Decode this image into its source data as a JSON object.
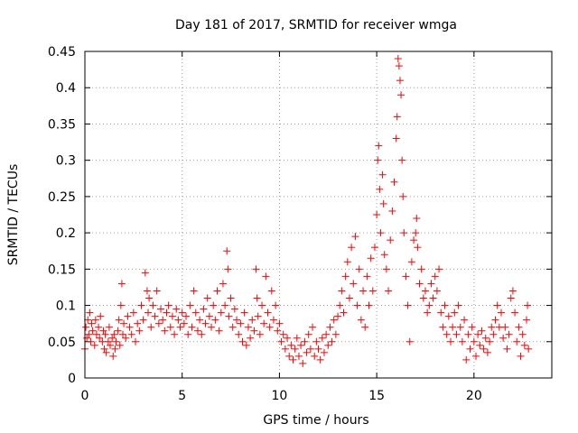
{
  "chart_data": {
    "type": "scatter",
    "title": "Day 181 of 2017, SRMTID for receiver wmga",
    "xlabel": "GPS time / hours",
    "ylabel": "SRMTID / TECUs",
    "xlim": [
      0,
      24
    ],
    "ylim": [
      0,
      0.45
    ],
    "xticks": [
      0,
      5,
      10,
      15,
      20
    ],
    "yticks": [
      0,
      0.05,
      0.1,
      0.15,
      0.2,
      0.25,
      0.3,
      0.35,
      0.4,
      0.45
    ],
    "xtick_labels": [
      "0",
      "5",
      "10",
      "15",
      "20"
    ],
    "ytick_labels": [
      "0",
      "0.05",
      "0.1",
      "0.15",
      "0.2",
      "0.25",
      "0.3",
      "0.35",
      "0.4",
      "0.45"
    ],
    "grid": true,
    "marker": "+",
    "color": "#ff0000",
    "series": [
      {
        "name": "wmga",
        "points": [
          [
            0.0,
            0.04
          ],
          [
            0.05,
            0.07
          ],
          [
            0.1,
            0.055
          ],
          [
            0.15,
            0.08
          ],
          [
            0.2,
            0.06
          ],
          [
            0.25,
            0.09
          ],
          [
            0.3,
            0.05
          ],
          [
            0.35,
            0.075
          ],
          [
            0.4,
            0.065
          ],
          [
            0.5,
            0.045
          ],
          [
            0.55,
            0.08
          ],
          [
            0.6,
            0.06
          ],
          [
            0.7,
            0.07
          ],
          [
            0.75,
            0.055
          ],
          [
            0.8,
            0.085
          ],
          [
            0.9,
            0.05
          ],
          [
            0.95,
            0.065
          ],
          [
            1.0,
            0.04
          ],
          [
            1.05,
            0.06
          ],
          [
            1.1,
            0.035
          ],
          [
            1.2,
            0.05
          ],
          [
            1.25,
            0.07
          ],
          [
            1.3,
            0.045
          ],
          [
            1.4,
            0.055
          ],
          [
            1.45,
            0.03
          ],
          [
            1.5,
            0.06
          ],
          [
            1.55,
            0.04
          ],
          [
            1.6,
            0.05
          ],
          [
            1.7,
            0.065
          ],
          [
            1.75,
            0.08
          ],
          [
            1.8,
            0.045
          ],
          [
            1.85,
            0.1
          ],
          [
            1.9,
            0.13
          ],
          [
            1.95,
            0.06
          ],
          [
            2.0,
            0.075
          ],
          [
            2.1,
            0.055
          ],
          [
            2.2,
            0.085
          ],
          [
            2.3,
            0.07
          ],
          [
            2.4,
            0.06
          ],
          [
            2.5,
            0.09
          ],
          [
            2.6,
            0.05
          ],
          [
            2.7,
            0.075
          ],
          [
            2.8,
            0.065
          ],
          [
            2.9,
            0.1
          ],
          [
            3.0,
            0.08
          ],
          [
            3.1,
            0.145
          ],
          [
            3.2,
            0.12
          ],
          [
            3.25,
            0.09
          ],
          [
            3.3,
            0.11
          ],
          [
            3.4,
            0.07
          ],
          [
            3.5,
            0.1
          ],
          [
            3.6,
            0.085
          ],
          [
            3.7,
            0.12
          ],
          [
            3.8,
            0.075
          ],
          [
            3.9,
            0.095
          ],
          [
            4.0,
            0.08
          ],
          [
            4.1,
            0.065
          ],
          [
            4.2,
            0.09
          ],
          [
            4.3,
            0.1
          ],
          [
            4.4,
            0.07
          ],
          [
            4.5,
            0.085
          ],
          [
            4.6,
            0.06
          ],
          [
            4.7,
            0.095
          ],
          [
            4.8,
            0.08
          ],
          [
            4.9,
            0.07
          ],
          [
            5.0,
            0.09
          ],
          [
            5.1,
            0.075
          ],
          [
            5.2,
            0.085
          ],
          [
            5.3,
            0.06
          ],
          [
            5.4,
            0.1
          ],
          [
            5.5,
            0.07
          ],
          [
            5.6,
            0.12
          ],
          [
            5.7,
            0.09
          ],
          [
            5.8,
            0.065
          ],
          [
            5.9,
            0.08
          ],
          [
            6.0,
            0.06
          ],
          [
            6.1,
            0.095
          ],
          [
            6.2,
            0.075
          ],
          [
            6.3,
            0.11
          ],
          [
            6.4,
            0.085
          ],
          [
            6.5,
            0.07
          ],
          [
            6.6,
            0.1
          ],
          [
            6.7,
            0.08
          ],
          [
            6.8,
            0.12
          ],
          [
            6.9,
            0.065
          ],
          [
            7.0,
            0.09
          ],
          [
            7.1,
            0.13
          ],
          [
            7.2,
            0.1
          ],
          [
            7.3,
            0.175
          ],
          [
            7.35,
            0.15
          ],
          [
            7.4,
            0.085
          ],
          [
            7.5,
            0.11
          ],
          [
            7.6,
            0.07
          ],
          [
            7.7,
            0.095
          ],
          [
            7.8,
            0.08
          ],
          [
            7.9,
            0.06
          ],
          [
            8.0,
            0.075
          ],
          [
            8.1,
            0.05
          ],
          [
            8.2,
            0.09
          ],
          [
            8.3,
            0.045
          ],
          [
            8.4,
            0.07
          ],
          [
            8.5,
            0.055
          ],
          [
            8.6,
            0.08
          ],
          [
            8.7,
            0.065
          ],
          [
            8.8,
            0.15
          ],
          [
            8.85,
            0.11
          ],
          [
            8.9,
            0.085
          ],
          [
            9.0,
            0.06
          ],
          [
            9.1,
            0.1
          ],
          [
            9.2,
            0.075
          ],
          [
            9.3,
            0.14
          ],
          [
            9.4,
            0.09
          ],
          [
            9.5,
            0.07
          ],
          [
            9.6,
            0.12
          ],
          [
            9.7,
            0.08
          ],
          [
            9.8,
            0.1
          ],
          [
            9.9,
            0.065
          ],
          [
            10.0,
            0.075
          ],
          [
            10.1,
            0.05
          ],
          [
            10.2,
            0.06
          ],
          [
            10.3,
            0.04
          ],
          [
            10.4,
            0.055
          ],
          [
            10.5,
            0.03
          ],
          [
            10.6,
            0.045
          ],
          [
            10.7,
            0.025
          ],
          [
            10.8,
            0.04
          ],
          [
            10.9,
            0.055
          ],
          [
            11.0,
            0.03
          ],
          [
            11.1,
            0.045
          ],
          [
            11.2,
            0.02
          ],
          [
            11.3,
            0.05
          ],
          [
            11.4,
            0.035
          ],
          [
            11.5,
            0.06
          ],
          [
            11.6,
            0.04
          ],
          [
            11.7,
            0.07
          ],
          [
            11.8,
            0.03
          ],
          [
            11.9,
            0.05
          ],
          [
            12.0,
            0.04
          ],
          [
            12.1,
            0.025
          ],
          [
            12.2,
            0.055
          ],
          [
            12.3,
            0.035
          ],
          [
            12.4,
            0.06
          ],
          [
            12.5,
            0.045
          ],
          [
            12.6,
            0.07
          ],
          [
            12.7,
            0.05
          ],
          [
            12.8,
            0.08
          ],
          [
            12.9,
            0.06
          ],
          [
            13.0,
            0.085
          ],
          [
            13.1,
            0.1
          ],
          [
            13.2,
            0.12
          ],
          [
            13.3,
            0.09
          ],
          [
            13.4,
            0.14
          ],
          [
            13.5,
            0.16
          ],
          [
            13.6,
            0.11
          ],
          [
            13.7,
            0.18
          ],
          [
            13.8,
            0.13
          ],
          [
            13.9,
            0.195
          ],
          [
            14.0,
            0.1
          ],
          [
            14.1,
            0.15
          ],
          [
            14.2,
            0.08
          ],
          [
            14.3,
            0.12
          ],
          [
            14.4,
            0.07
          ],
          [
            14.5,
            0.14
          ],
          [
            14.6,
            0.1
          ],
          [
            14.7,
            0.165
          ],
          [
            14.8,
            0.12
          ],
          [
            14.9,
            0.18
          ],
          [
            15.0,
            0.225
          ],
          [
            15.05,
            0.3
          ],
          [
            15.1,
            0.32
          ],
          [
            15.15,
            0.26
          ],
          [
            15.2,
            0.2
          ],
          [
            15.3,
            0.28
          ],
          [
            15.35,
            0.24
          ],
          [
            15.4,
            0.17
          ],
          [
            15.5,
            0.15
          ],
          [
            15.6,
            0.12
          ],
          [
            15.7,
            0.19
          ],
          [
            15.8,
            0.23
          ],
          [
            15.9,
            0.27
          ],
          [
            16.0,
            0.33
          ],
          [
            16.05,
            0.36
          ],
          [
            16.1,
            0.44
          ],
          [
            16.15,
            0.43
          ],
          [
            16.2,
            0.41
          ],
          [
            16.25,
            0.39
          ],
          [
            16.3,
            0.3
          ],
          [
            16.35,
            0.25
          ],
          [
            16.4,
            0.2
          ],
          [
            16.5,
            0.14
          ],
          [
            16.6,
            0.1
          ],
          [
            16.7,
            0.05
          ],
          [
            16.8,
            0.16
          ],
          [
            16.9,
            0.19
          ],
          [
            17.0,
            0.2
          ],
          [
            17.05,
            0.22
          ],
          [
            17.1,
            0.18
          ],
          [
            17.2,
            0.13
          ],
          [
            17.3,
            0.15
          ],
          [
            17.4,
            0.11
          ],
          [
            17.5,
            0.12
          ],
          [
            17.6,
            0.09
          ],
          [
            17.7,
            0.1
          ],
          [
            17.8,
            0.13
          ],
          [
            17.9,
            0.11
          ],
          [
            18.0,
            0.14
          ],
          [
            18.1,
            0.12
          ],
          [
            18.2,
            0.15
          ],
          [
            18.3,
            0.09
          ],
          [
            18.4,
            0.07
          ],
          [
            18.5,
            0.1
          ],
          [
            18.6,
            0.06
          ],
          [
            18.7,
            0.085
          ],
          [
            18.8,
            0.05
          ],
          [
            18.9,
            0.07
          ],
          [
            19.0,
            0.09
          ],
          [
            19.1,
            0.06
          ],
          [
            19.2,
            0.1
          ],
          [
            19.3,
            0.07
          ],
          [
            19.4,
            0.05
          ],
          [
            19.5,
            0.08
          ],
          [
            19.6,
            0.025
          ],
          [
            19.7,
            0.06
          ],
          [
            19.8,
            0.04
          ],
          [
            19.9,
            0.07
          ],
          [
            20.0,
            0.05
          ],
          [
            20.1,
            0.03
          ],
          [
            20.2,
            0.06
          ],
          [
            20.3,
            0.045
          ],
          [
            20.4,
            0.065
          ],
          [
            20.5,
            0.04
          ],
          [
            20.6,
            0.055
          ],
          [
            20.7,
            0.035
          ],
          [
            20.8,
            0.05
          ],
          [
            20.9,
            0.07
          ],
          [
            21.0,
            0.06
          ],
          [
            21.1,
            0.08
          ],
          [
            21.2,
            0.1
          ],
          [
            21.3,
            0.07
          ],
          [
            21.4,
            0.09
          ],
          [
            21.5,
            0.055
          ],
          [
            21.6,
            0.07
          ],
          [
            21.7,
            0.04
          ],
          [
            21.8,
            0.06
          ],
          [
            21.9,
            0.11
          ],
          [
            22.0,
            0.12
          ],
          [
            22.1,
            0.09
          ],
          [
            22.2,
            0.05
          ],
          [
            22.3,
            0.07
          ],
          [
            22.4,
            0.03
          ],
          [
            22.5,
            0.06
          ],
          [
            22.6,
            0.045
          ],
          [
            22.7,
            0.08
          ],
          [
            22.75,
            0.1
          ],
          [
            22.8,
            0.04
          ]
        ]
      }
    ]
  }
}
